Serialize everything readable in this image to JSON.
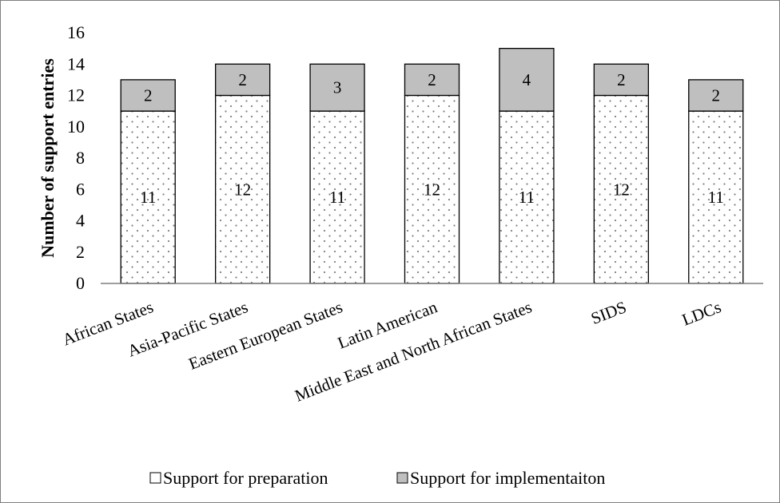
{
  "chart_data": {
    "type": "bar",
    "stacked": true,
    "categories": [
      "African States",
      "Asia-Pacific States",
      "Eastern European States",
      "Latin American",
      "Middle East and North African States",
      "SIDS",
      "LDCs"
    ],
    "series": [
      {
        "name": "Support for preparation",
        "values": [
          11,
          12,
          11,
          12,
          11,
          12,
          11
        ],
        "color": "#ffffff",
        "pattern": "dots"
      },
      {
        "name": "Support for implementaiton",
        "values": [
          2,
          2,
          3,
          2,
          4,
          2,
          2
        ],
        "color": "#bfbfbf"
      }
    ],
    "title": "",
    "xlabel": "",
    "ylabel": "Number of support entries",
    "ylim": [
      0,
      16
    ],
    "yticks": [
      0,
      2,
      4,
      6,
      8,
      10,
      12,
      14,
      16
    ],
    "grid": false,
    "legend": "bottom"
  }
}
